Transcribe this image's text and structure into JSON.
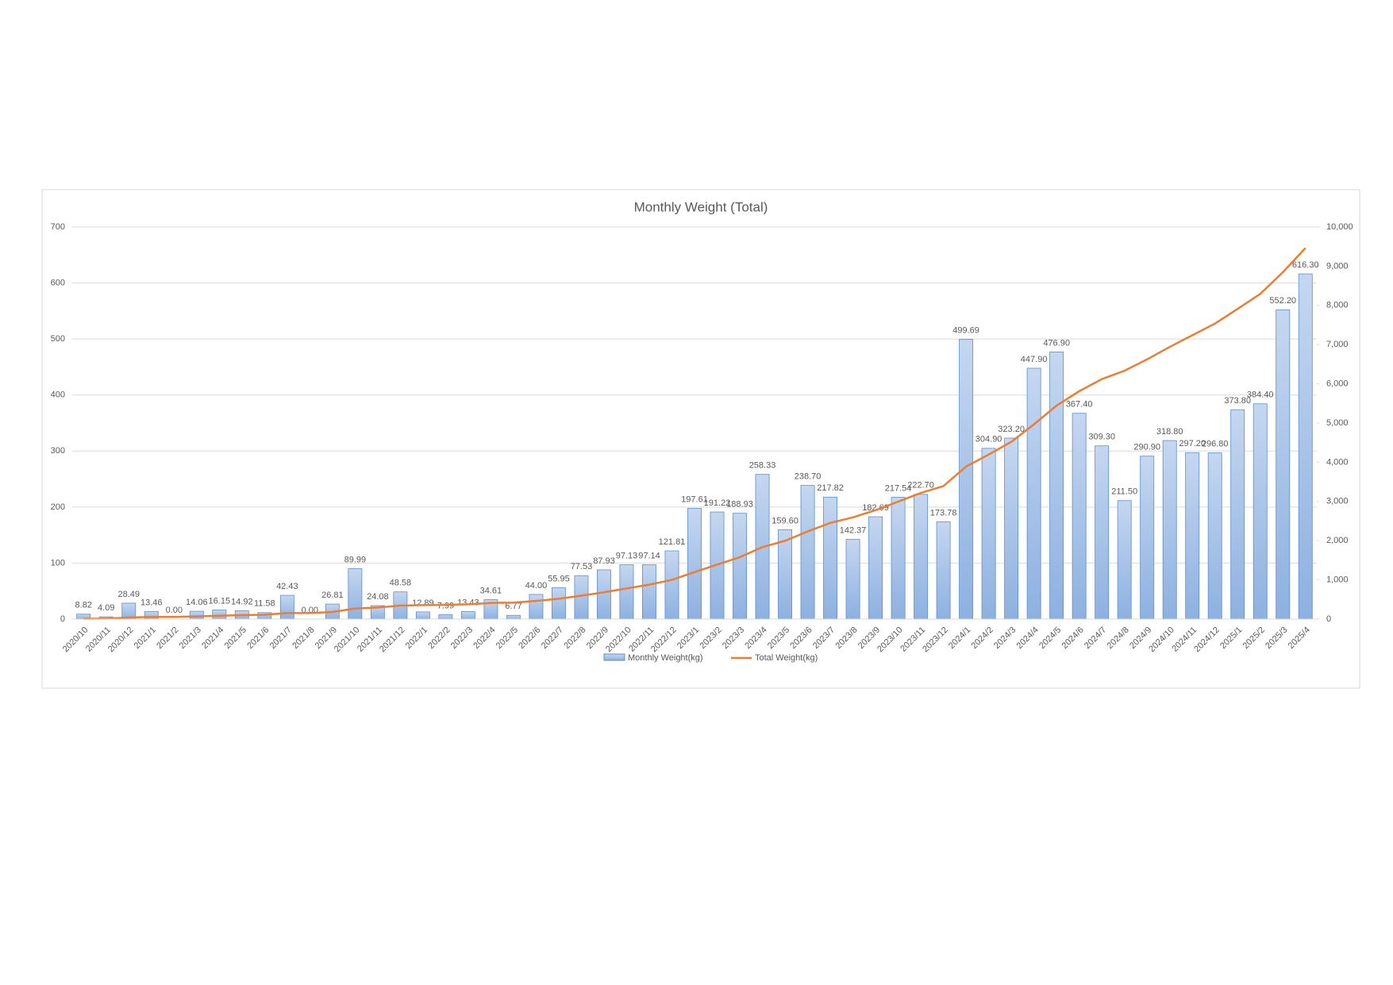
{
  "chart_data": {
    "type": "bar",
    "title": "Monthly Weight (Total)",
    "categories": [
      "2020/10",
      "2020/11",
      "2020/12",
      "2021/1",
      "2021/2",
      "2021/3",
      "2021/4",
      "2021/5",
      "2021/6",
      "2021/7",
      "2021/8",
      "2021/9",
      "2021/10",
      "2021/11",
      "2021/12",
      "2022/1",
      "2022/2",
      "2022/3",
      "2022/4",
      "2022/5",
      "2022/6",
      "2022/7",
      "2022/8",
      "2022/9",
      "2022/10",
      "2022/11",
      "2022/12",
      "2023/1",
      "2023/2",
      "2023/3",
      "2023/4",
      "2023/5",
      "2023/6",
      "2023/7",
      "2023/8",
      "2023/9",
      "2023/10",
      "2023/11",
      "2023/12",
      "2024/1",
      "2024/2",
      "2024/3",
      "2024/4",
      "2024/5",
      "2024/6",
      "2024/7",
      "2024/8",
      "2024/9",
      "2024/10",
      "2024/11",
      "2024/12",
      "2025/1",
      "2025/2",
      "2025/3",
      "2025/4"
    ],
    "series": [
      {
        "name": "Monthly Weight(kg)",
        "type": "bar",
        "color": "#a7c2e6",
        "values": [
          8.82,
          4.09,
          28.49,
          13.46,
          0,
          14.06,
          16.15,
          14.92,
          11.58,
          42.43,
          0,
          26.81,
          89.99,
          24.08,
          48.58,
          12.89,
          7.99,
          13.43,
          34.61,
          6.77,
          44,
          55.95,
          77.53,
          87.93,
          97.13,
          97.14,
          121.81,
          197.61,
          191.22,
          188.93,
          258.33,
          159.6,
          238.7,
          217.82,
          142.37,
          182.69,
          217.54,
          222.7,
          173.78,
          499.69,
          304.9,
          323.2,
          447.9,
          476.9,
          367.4,
          309.3,
          211.5,
          290.9,
          318.8,
          297.2,
          296.8,
          373.8,
          384.4,
          552.2,
          616.3
        ],
        "value_labels": [
          "8.82",
          "4.09",
          "28.49",
          "13.46",
          "0.00",
          "14.06",
          "16.15",
          "14.92",
          "11.58",
          "42.43",
          "0.00",
          "26.81",
          "89.99",
          "24.08",
          "48.58",
          "12.89",
          "7.99",
          "13.43",
          "34.61",
          "6.77",
          "44.00",
          "55.95",
          "77.53",
          "87.93",
          "97.13",
          "97.14",
          "121.81",
          "197.61",
          "191.22",
          "188.93",
          "258.33",
          "159.60",
          "238.70",
          "217.82",
          "142.37",
          "182.69",
          "217.54",
          "222.70",
          "173.78",
          "499.69",
          "304.90",
          "323.20",
          "447.90",
          "476.90",
          "367.40",
          "309.30",
          "211.50",
          "290.90",
          "318.80",
          "297.20",
          "296.80",
          "373.80",
          "384.40",
          "552.20",
          "616.30"
        ]
      },
      {
        "name": "Total Weight(kg)",
        "type": "line",
        "axis": "y2",
        "color": "#ed7d31",
        "values": [
          8.82,
          12.91,
          41.4,
          54.86,
          54.86,
          68.92,
          85.07,
          99.99,
          111.57,
          154,
          154,
          180.81,
          270.8,
          294.88,
          343.46,
          356.35,
          364.34,
          377.77,
          412.38,
          419.15,
          463.15,
          519.1,
          596.63,
          684.56,
          781.69,
          878.83,
          1000.64,
          1198.25,
          1389.47,
          1578.4,
          1836.73,
          1996.33,
          2235.03,
          2452.85,
          2595.22,
          2777.91,
          2995.45,
          3218.15,
          3391.93,
          3891.62,
          4196.52,
          4519.72,
          4967.62,
          5444.52,
          5811.92,
          6121.22,
          6332.72,
          6623.62,
          6942.42,
          7239.62,
          7536.42,
          7910.22,
          8294.62,
          8846.82,
          9463.12
        ]
      }
    ],
    "ylim": [
      0,
      700
    ],
    "yticks": [
      0,
      100,
      200,
      300,
      400,
      500,
      600,
      700
    ],
    "y2lim": [
      0,
      10000
    ],
    "y2ticks": [
      0,
      {
        "value": 1000,
        "label": "1,000"
      },
      {
        "value": 2000,
        "label": "2,000"
      },
      {
        "value": 3000,
        "label": "3,000"
      },
      {
        "value": 4000,
        "label": "4,000"
      },
      {
        "value": 5000,
        "label": "5,000"
      },
      {
        "value": 6000,
        "label": "6,000"
      },
      {
        "value": 7000,
        "label": "7,000"
      },
      {
        "value": 8000,
        "label": "8,000"
      },
      {
        "value": 9000,
        "label": "9,000"
      },
      {
        "value": 10000,
        "label": "10,000"
      }
    ],
    "grid": true,
    "legend": "bottom"
  }
}
